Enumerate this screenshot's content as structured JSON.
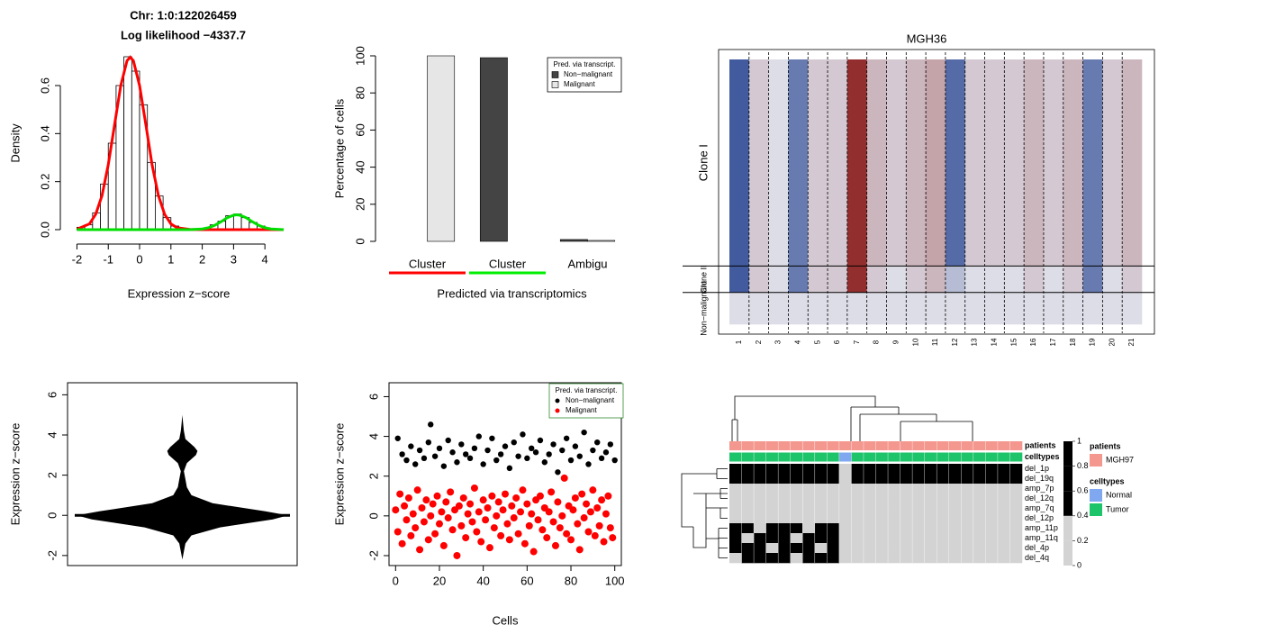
{
  "chart_data": [
    {
      "type": "histogram",
      "title": "Chr: 1:0:122026459",
      "subtitle": "Log likelihood −4337.7",
      "x_label": "Expression z−score",
      "y_label": "Density",
      "bins": [
        -2,
        -1.75,
        -1.5,
        -1.25,
        -1,
        -0.75,
        -0.5,
        -0.25,
        0,
        0.25,
        0.5,
        0.75,
        1,
        1.25,
        1.5,
        1.75,
        2,
        2.25,
        2.5,
        2.75,
        3,
        3.25,
        3.5,
        3.75,
        4,
        4.25,
        4.5
      ],
      "values": [
        0.01,
        0.02,
        0.07,
        0.19,
        0.36,
        0.6,
        0.72,
        0.66,
        0.52,
        0.28,
        0.14,
        0.05,
        0.015,
        0.005,
        0.002,
        0,
        0.006,
        0.02,
        0.035,
        0.058,
        0.065,
        0.05,
        0.03,
        0.015,
        0.005,
        0.002
      ],
      "color": "#ffffff",
      "edge_color": "#000000",
      "lines": [
        {
          "color": "#ff0000",
          "x": [
            -2,
            -1.6,
            -1.4,
            -1.2,
            -1,
            -0.8,
            -0.6,
            -0.4,
            -0.3,
            -0.2,
            0,
            0.2,
            0.4,
            0.6,
            0.8,
            1,
            1.2,
            1.6,
            2,
            2.2,
            2.4,
            2.6,
            2.8,
            3,
            3.1,
            3.2,
            3.4,
            3.6,
            3.8,
            4,
            4.2,
            4.6
          ],
          "values": [
            0.002,
            0.024,
            0.064,
            0.142,
            0.27,
            0.436,
            0.6,
            0.704,
            0.718,
            0.704,
            0.6,
            0.436,
            0.27,
            0.142,
            0.064,
            0.024,
            0.008,
            0.001,
            0,
            0,
            0,
            0,
            0,
            0,
            0,
            0,
            0,
            0,
            0,
            0,
            0,
            0
          ]
        },
        {
          "color": "#00dd00",
          "x": [
            -2,
            -1.6,
            -1.4,
            -1.2,
            -1,
            -0.8,
            -0.6,
            -0.4,
            -0.3,
            -0.2,
            0,
            0.2,
            0.4,
            0.6,
            0.8,
            1,
            1.2,
            1.6,
            2,
            2.2,
            2.4,
            2.6,
            2.8,
            3,
            3.1,
            3.2,
            3.4,
            3.6,
            3.8,
            4,
            4.2,
            4.6
          ],
          "values": [
            0,
            0,
            0,
            0,
            0,
            0,
            0,
            0,
            0,
            0,
            0,
            0,
            0,
            0,
            0,
            0,
            0,
            0,
            0.003,
            0.008,
            0.018,
            0.033,
            0.05,
            0.06,
            0.062,
            0.06,
            0.05,
            0.033,
            0.018,
            0.008,
            0.003,
            0
          ]
        }
      ],
      "xlim": [
        -2.3,
        4.8
      ],
      "ylim": [
        -0.03,
        0.75
      ],
      "xticks": [
        -2,
        -1,
        0,
        1,
        2,
        3,
        4
      ],
      "yticks": [
        {
          "value": 0,
          "label": "0.0"
        },
        0.2,
        0.4,
        0.6
      ]
    },
    {
      "type": "bar",
      "categories": [
        "Cluster",
        "Cluster",
        "Ambigu"
      ],
      "category_colors": [
        "#ff0000",
        "#00ee00",
        null
      ],
      "x_label": "Predicted via transcriptomics",
      "y_label": "Percentage of cells",
      "legend_title": "Pred. via transcript.",
      "legend": "topright",
      "series": [
        {
          "name": "Non−malignant",
          "color": "#444444",
          "values": [
            0,
            99,
            1
          ]
        },
        {
          "name": "Malignant",
          "color": "#e6e6e6",
          "values": [
            100,
            0,
            0.5
          ]
        }
      ],
      "ylim": [
        0,
        100
      ],
      "yticks": [
        0,
        20,
        40,
        60,
        80,
        100
      ]
    },
    {
      "type": "heatmap",
      "title": "MGH36",
      "rows": [
        "Clone I",
        "Clone II",
        "Non−malignant"
      ],
      "columns": [
        "1",
        "2",
        "3",
        "4",
        "5",
        "6",
        "7",
        "8",
        "9",
        "10",
        "11",
        "12",
        "13",
        "14",
        "15",
        "16",
        "17",
        "18",
        "19",
        "20",
        "21"
      ],
      "values": [
        [
          -0.8,
          0.1,
          0,
          -0.6,
          0.1,
          0.1,
          0.9,
          0.2,
          0.1,
          0.2,
          0.3,
          -0.7,
          0.1,
          0.1,
          0.1,
          0.2,
          0.1,
          0.2,
          -0.6,
          0.1,
          0.2
        ],
        [
          -0.8,
          0.1,
          0,
          -0.6,
          0.1,
          0.1,
          0.9,
          0.1,
          0,
          0.1,
          0.2,
          -0.2,
          0,
          0,
          0,
          0.1,
          0,
          0.1,
          -0.6,
          0,
          0.1
        ],
        [
          0,
          0,
          0,
          0,
          0,
          0,
          0,
          0,
          0,
          0,
          0,
          0,
          0,
          0,
          0,
          0,
          0,
          0,
          0,
          0,
          0
        ]
      ],
      "colors": [
        "#1b3a8c",
        "#dcdde6",
        "#8b1a1a"
      ],
      "zlim": [
        -1,
        1
      ]
    },
    {
      "type": "violin",
      "y_label": "Expression z−score",
      "y": [
        -2.2,
        -1.8,
        -1.4,
        -1,
        -0.6,
        -0.2,
        0,
        0.2,
        0.6,
        1,
        1.4,
        1.8,
        2.2,
        2.6,
        3,
        3.2,
        3.4,
        3.8,
        4.2,
        4.6,
        5
      ],
      "density": [
        0,
        0.01,
        0.02,
        0.06,
        0.25,
        0.6,
        0.7,
        0.55,
        0.2,
        0.06,
        0.03,
        0.02,
        0.01,
        0.03,
        0.09,
        0.1,
        0.08,
        0.02,
        0.01,
        0.005,
        0
      ],
      "reference_line": 0,
      "color": "#000000",
      "ylim": [
        -2.5,
        6.6
      ],
      "yticks": [
        -2,
        0,
        2,
        4,
        6
      ]
    },
    {
      "type": "scatter",
      "x_label": "Cells",
      "y_label": "Expression z−score",
      "legend_title": "Pred. via transcript.",
      "legend": "topright",
      "legend_border": "#2e8b2e",
      "series": [
        {
          "name": "Non−malignant",
          "color": "#000000",
          "x": [
            1,
            3,
            5,
            7,
            9,
            11,
            13,
            15,
            16,
            18,
            20,
            22,
            24,
            26,
            28,
            30,
            32,
            34,
            36,
            38,
            40,
            42,
            44,
            46,
            48,
            50,
            52,
            54,
            56,
            58,
            60,
            62,
            64,
            66,
            68,
            70,
            72,
            74,
            76,
            78,
            80,
            82,
            84,
            86,
            88,
            90,
            92,
            94,
            96,
            98,
            100
          ],
          "values": [
            3.9,
            3.1,
            2.8,
            3.5,
            2.6,
            3.3,
            2.9,
            3.7,
            4.6,
            3.0,
            3.4,
            2.5,
            3.8,
            3.2,
            2.7,
            3.6,
            3.1,
            2.9,
            3.4,
            4.0,
            2.6,
            3.3,
            3.9,
            2.8,
            3.1,
            3.5,
            2.4,
            3.7,
            3.0,
            4.1,
            2.9,
            3.4,
            3.2,
            3.8,
            2.7,
            3.1,
            3.6,
            2.2,
            3.3,
            3.9,
            2.8,
            3.5,
            3.0,
            4.2,
            2.6,
            3.3,
            3.7,
            2.9,
            3.2,
            3.6,
            2.8
          ]
        },
        {
          "name": "Malignant",
          "color": "#ff0000",
          "x": [
            0,
            1,
            2,
            3,
            4,
            5,
            6,
            7,
            8,
            9,
            10,
            11,
            12,
            13,
            14,
            15,
            16,
            17,
            18,
            19,
            20,
            21,
            22,
            23,
            24,
            25,
            26,
            27,
            28,
            29,
            30,
            31,
            32,
            33,
            34,
            35,
            36,
            37,
            38,
            39,
            40,
            41,
            42,
            43,
            44,
            45,
            46,
            47,
            48,
            49,
            50,
            51,
            52,
            53,
            54,
            55,
            56,
            57,
            58,
            59,
            60,
            61,
            62,
            63,
            64,
            65,
            66,
            67,
            68,
            69,
            70,
            71,
            72,
            73,
            74,
            75,
            76,
            77,
            78,
            79,
            80,
            81,
            82,
            83,
            84,
            85,
            86,
            87,
            88,
            89,
            90,
            91,
            92,
            93,
            94,
            95,
            96,
            97,
            98,
            99
          ],
          "values": [
            0.3,
            -0.8,
            1.1,
            -1.4,
            0.5,
            -0.2,
            0.9,
            -1.0,
            0.1,
            -0.6,
            1.3,
            -1.7,
            0.4,
            -0.3,
            0.8,
            -1.2,
            0.0,
            0.6,
            -0.9,
            1.0,
            -0.4,
            0.2,
            -1.5,
            0.7,
            -0.1,
            1.2,
            -0.7,
            0.3,
            -2.0,
            0.5,
            -0.5,
            0.9,
            -1.1,
            0.1,
            0.6,
            -0.3,
            1.4,
            -0.8,
            0.2,
            -1.3,
            0.8,
            -0.2,
            0.4,
            -1.6,
            1.0,
            -0.6,
            0.0,
            0.7,
            -1.0,
            0.3,
            1.1,
            -0.4,
            -1.2,
            0.5,
            -0.1,
            0.9,
            -0.9,
            0.2,
            1.3,
            -1.4,
            0.6,
            -0.5,
            0.1,
            -1.8,
            0.8,
            -0.2,
            1.0,
            -0.7,
            0.4,
            -1.1,
            0.2,
            1.2,
            -0.3,
            -1.5,
            0.7,
            -0.6,
            0.0,
            1.9,
            -0.9,
            0.5,
            -1.2,
            0.3,
            0.9,
            -0.4,
            -1.7,
            1.1,
            -0.1,
            0.6,
            -0.8,
            0.2,
            1.3,
            -1.0,
            0.4,
            -0.5,
            0.8,
            -1.3,
            0.1,
            1.0,
            -0.6,
            -1.1
          ]
        }
      ],
      "xlim": [
        -3,
        103
      ],
      "ylim": [
        -2.5,
        6.7
      ],
      "xticks": [
        0,
        20,
        40,
        60,
        80,
        100
      ],
      "yticks": [
        -2,
        0,
        2,
        4,
        6
      ]
    },
    {
      "type": "clustered_heatmap",
      "rows": [
        "del_1p",
        "del_19q",
        "amp_7p",
        "del_12q",
        "amp_7q",
        "del_12p",
        "amp_11p",
        "amp_11q",
        "del_4p",
        "del_4q"
      ],
      "values": [
        [
          1,
          1,
          1,
          1,
          1,
          1,
          1,
          1,
          1,
          0,
          1,
          1,
          1,
          1,
          1,
          1,
          1,
          1,
          1,
          1,
          1,
          1,
          1,
          1
        ],
        [
          1,
          1,
          1,
          1,
          1,
          1,
          1,
          1,
          1,
          0,
          1,
          1,
          1,
          1,
          1,
          1,
          1,
          1,
          1,
          1,
          1,
          1,
          1,
          1
        ],
        [
          0,
          0,
          0,
          0,
          0,
          0,
          0,
          0,
          0,
          0,
          0,
          0,
          0,
          0,
          0,
          0,
          0,
          0,
          0,
          0,
          0,
          0,
          0,
          0
        ],
        [
          0,
          0,
          0,
          0,
          0,
          0,
          0,
          0,
          0,
          0,
          0,
          0,
          0,
          0,
          0,
          0,
          0,
          0,
          0,
          0,
          0,
          0,
          0,
          0
        ],
        [
          0,
          0,
          0,
          0,
          0,
          0,
          0,
          0,
          0,
          0,
          0,
          0,
          0,
          0,
          0,
          0,
          0,
          0,
          0,
          0,
          0,
          0,
          0,
          0
        ],
        [
          0,
          0,
          0,
          0,
          0,
          0,
          0,
          0,
          0,
          0,
          0,
          0,
          0,
          0,
          0,
          0,
          0,
          0,
          0,
          0,
          0,
          0,
          0,
          0
        ],
        [
          1,
          1,
          0,
          1,
          1,
          1,
          0,
          1,
          1,
          0,
          0,
          0,
          0,
          0,
          0,
          0,
          0,
          0,
          0,
          0,
          0,
          0,
          0,
          0
        ],
        [
          1,
          0,
          1,
          1,
          1,
          0,
          1,
          1,
          1,
          0,
          0,
          0,
          0,
          0,
          0,
          0,
          0,
          0,
          0,
          0,
          0,
          0,
          0,
          0
        ],
        [
          1,
          1,
          1,
          0,
          1,
          1,
          1,
          0,
          1,
          0,
          0,
          0,
          0,
          0,
          0,
          0,
          0,
          0,
          0,
          0,
          0,
          0,
          0,
          0
        ],
        [
          0,
          1,
          1,
          1,
          1,
          0,
          1,
          1,
          1,
          0,
          0,
          0,
          0,
          0,
          0,
          0,
          0,
          0,
          0,
          0,
          0,
          0,
          0,
          0
        ]
      ],
      "colors": [
        "#d3d3d3",
        "#000000"
      ],
      "zlim": [
        0,
        1
      ],
      "zticks": [
        0,
        0.2,
        0.4,
        0.6,
        0.8,
        1
      ],
      "annotations": [
        {
          "name": "patients",
          "levels": [
            {
              "name": "MGH97",
              "color": "#f4978e"
            }
          ],
          "values": [
            0,
            0,
            0,
            0,
            0,
            0,
            0,
            0,
            0,
            0,
            0,
            0,
            0,
            0,
            0,
            0,
            0,
            0,
            0,
            0,
            0,
            0,
            0,
            0
          ]
        },
        {
          "name": "celltypes",
          "levels": [
            {
              "name": "Normal",
              "color": "#7fa8f0"
            },
            {
              "name": "Tumor",
              "color": "#1dc46a"
            }
          ],
          "values": [
            1,
            1,
            1,
            1,
            1,
            1,
            1,
            1,
            1,
            0,
            1,
            1,
            1,
            1,
            1,
            1,
            1,
            1,
            1,
            1,
            1,
            1,
            1,
            1
          ]
        }
      ]
    }
  ]
}
